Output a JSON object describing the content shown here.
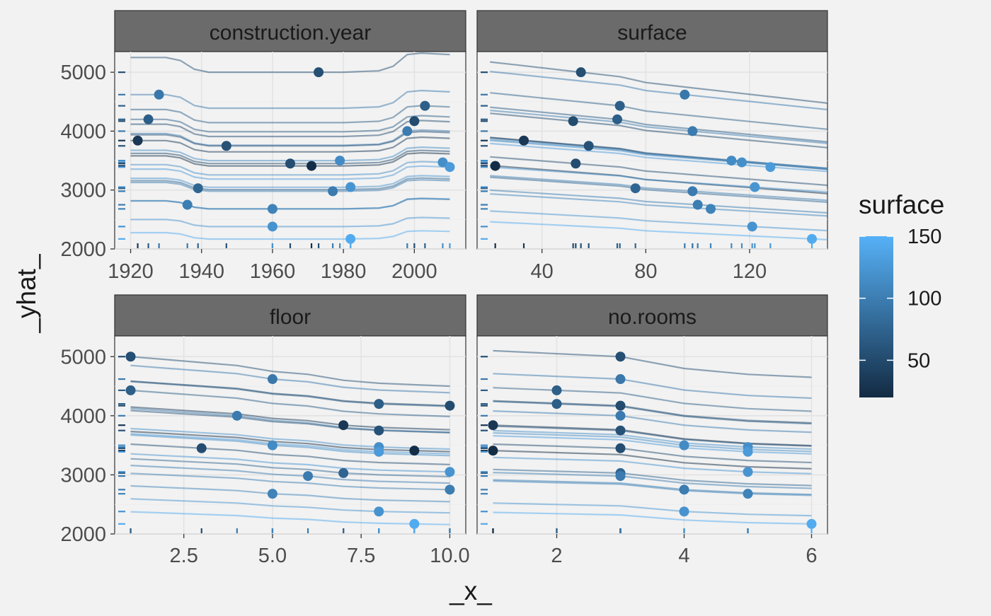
{
  "chart_data": {
    "type": "line",
    "subtype": "ceteris-paribus-profiles",
    "xlabel": "_x_",
    "ylabel": "_yhat_",
    "ylim": [
      2000,
      5350
    ],
    "y_ticks": [
      2000,
      3000,
      4000,
      5000
    ],
    "y_tick_labels": [
      "2000",
      "3000",
      "4000",
      "5000"
    ],
    "grid": true,
    "legend": {
      "title": "surface",
      "position": "right",
      "range": [
        20,
        150
      ],
      "ticks": [
        50,
        100,
        150
      ],
      "tick_labels": [
        "50",
        "100",
        "150"
      ],
      "color_low": "#132B43",
      "color_high": "#56B1F7"
    },
    "line_alpha": 0.5,
    "observations": [
      {
        "construction.year": 1973,
        "surface": 55,
        "floor": 1,
        "no.rooms": 3,
        "yhat": 5000
      },
      {
        "construction.year": 1928,
        "surface": 95,
        "floor": 5,
        "no.rooms": 3,
        "yhat": 4620
      },
      {
        "construction.year": 2003,
        "surface": 70,
        "floor": 1,
        "no.rooms": 2,
        "yhat": 4430
      },
      {
        "construction.year": 1925,
        "surface": 69,
        "floor": 8,
        "no.rooms": 2,
        "yhat": 4200
      },
      {
        "construction.year": 2000,
        "surface": 52,
        "floor": 10,
        "no.rooms": 3,
        "yhat": 4170
      },
      {
        "construction.year": 1998,
        "surface": 98,
        "floor": 4,
        "no.rooms": 3,
        "yhat": 4000
      },
      {
        "construction.year": 1922,
        "surface": 33,
        "floor": 7,
        "no.rooms": 1,
        "yhat": 3840
      },
      {
        "construction.year": 1947,
        "surface": 58,
        "floor": 8,
        "no.rooms": 3,
        "yhat": 3750
      },
      {
        "construction.year": 1979,
        "surface": 113,
        "floor": 5,
        "no.rooms": 4,
        "yhat": 3500
      },
      {
        "construction.year": 2008,
        "surface": 117,
        "floor": 8,
        "no.rooms": 5,
        "yhat": 3470
      },
      {
        "construction.year": 1965,
        "surface": 53,
        "floor": 3,
        "no.rooms": 3,
        "yhat": 3450
      },
      {
        "construction.year": 1971,
        "surface": 22,
        "floor": 9,
        "no.rooms": 1,
        "yhat": 3410
      },
      {
        "construction.year": 2010,
        "surface": 128,
        "floor": 8,
        "no.rooms": 5,
        "yhat": 3390
      },
      {
        "construction.year": 1982,
        "surface": 122,
        "floor": 10,
        "no.rooms": 5,
        "yhat": 3050
      },
      {
        "construction.year": 1939,
        "surface": 76,
        "floor": 7,
        "no.rooms": 3,
        "yhat": 3030
      },
      {
        "construction.year": 1977,
        "surface": 98,
        "floor": 6,
        "no.rooms": 3,
        "yhat": 2980
      },
      {
        "construction.year": 1936,
        "surface": 100,
        "floor": 10,
        "no.rooms": 4,
        "yhat": 2750
      },
      {
        "construction.year": 1960,
        "surface": 105,
        "floor": 5,
        "no.rooms": 5,
        "yhat": 2680
      },
      {
        "construction.year": 1960,
        "surface": 121,
        "floor": 8,
        "no.rooms": 4,
        "yhat": 2380
      },
      {
        "construction.year": 1982,
        "surface": 144,
        "floor": 9,
        "no.rooms": 6,
        "yhat": 2170
      }
    ],
    "panels": [
      {
        "variable": "construction.year",
        "title": "construction.year",
        "xlim": [
          1915.5,
          2014.5
        ],
        "x_ticks": [
          1920,
          1940,
          1960,
          1980,
          2000
        ],
        "x_tick_labels": [
          "1920",
          "1940",
          "1960",
          "1980",
          "2000"
        ],
        "profile_x": [
          1920,
          1930,
          1934,
          1938,
          1942,
          1950,
          1960,
          1970,
          1980,
          1990,
          1994,
          1998,
          2002,
          2010
        ],
        "profile_shape": [
          0,
          0,
          -0.01,
          -0.04,
          -0.05,
          -0.05,
          -0.05,
          -0.05,
          -0.05,
          -0.045,
          -0.03,
          0.01,
          0.015,
          0.01
        ]
      },
      {
        "variable": "surface",
        "title": "surface",
        "xlim": [
          15,
          150
        ],
        "x_ticks": [
          40,
          80,
          120
        ],
        "x_tick_labels": [
          "40",
          "80",
          "120"
        ],
        "profile_x": [
          20,
          30,
          40,
          50,
          60,
          70,
          80,
          90,
          100,
          110,
          120,
          130,
          140,
          150
        ],
        "profile_shape": [
          0.02,
          0.01,
          0,
          -0.01,
          -0.02,
          -0.03,
          -0.05,
          -0.06,
          -0.07,
          -0.08,
          -0.09,
          -0.1,
          -0.11,
          -0.12
        ]
      },
      {
        "variable": "floor",
        "title": "floor",
        "xlim": [
          0.55,
          10.45
        ],
        "x_ticks": [
          2.5,
          5.0,
          7.5,
          10.0
        ],
        "x_tick_labels": [
          "2.5",
          "5.0",
          "7.5",
          "10.0"
        ],
        "profile_x": [
          1,
          2,
          3,
          4,
          5,
          6,
          7,
          8,
          9,
          10
        ],
        "profile_shape": [
          0.05,
          0.04,
          0.03,
          0.02,
          0,
          -0.01,
          -0.03,
          -0.04,
          -0.045,
          -0.05
        ]
      },
      {
        "variable": "no.rooms",
        "title": "no.rooms",
        "xlim": [
          0.75,
          6.25
        ],
        "x_ticks": [
          2,
          4,
          6
        ],
        "x_tick_labels": [
          "2",
          "4",
          "6"
        ],
        "profile_x": [
          1,
          2,
          3,
          4,
          5,
          6
        ],
        "profile_shape": [
          0.03,
          0.02,
          0.01,
          -0.03,
          -0.05,
          -0.06
        ]
      }
    ]
  }
}
